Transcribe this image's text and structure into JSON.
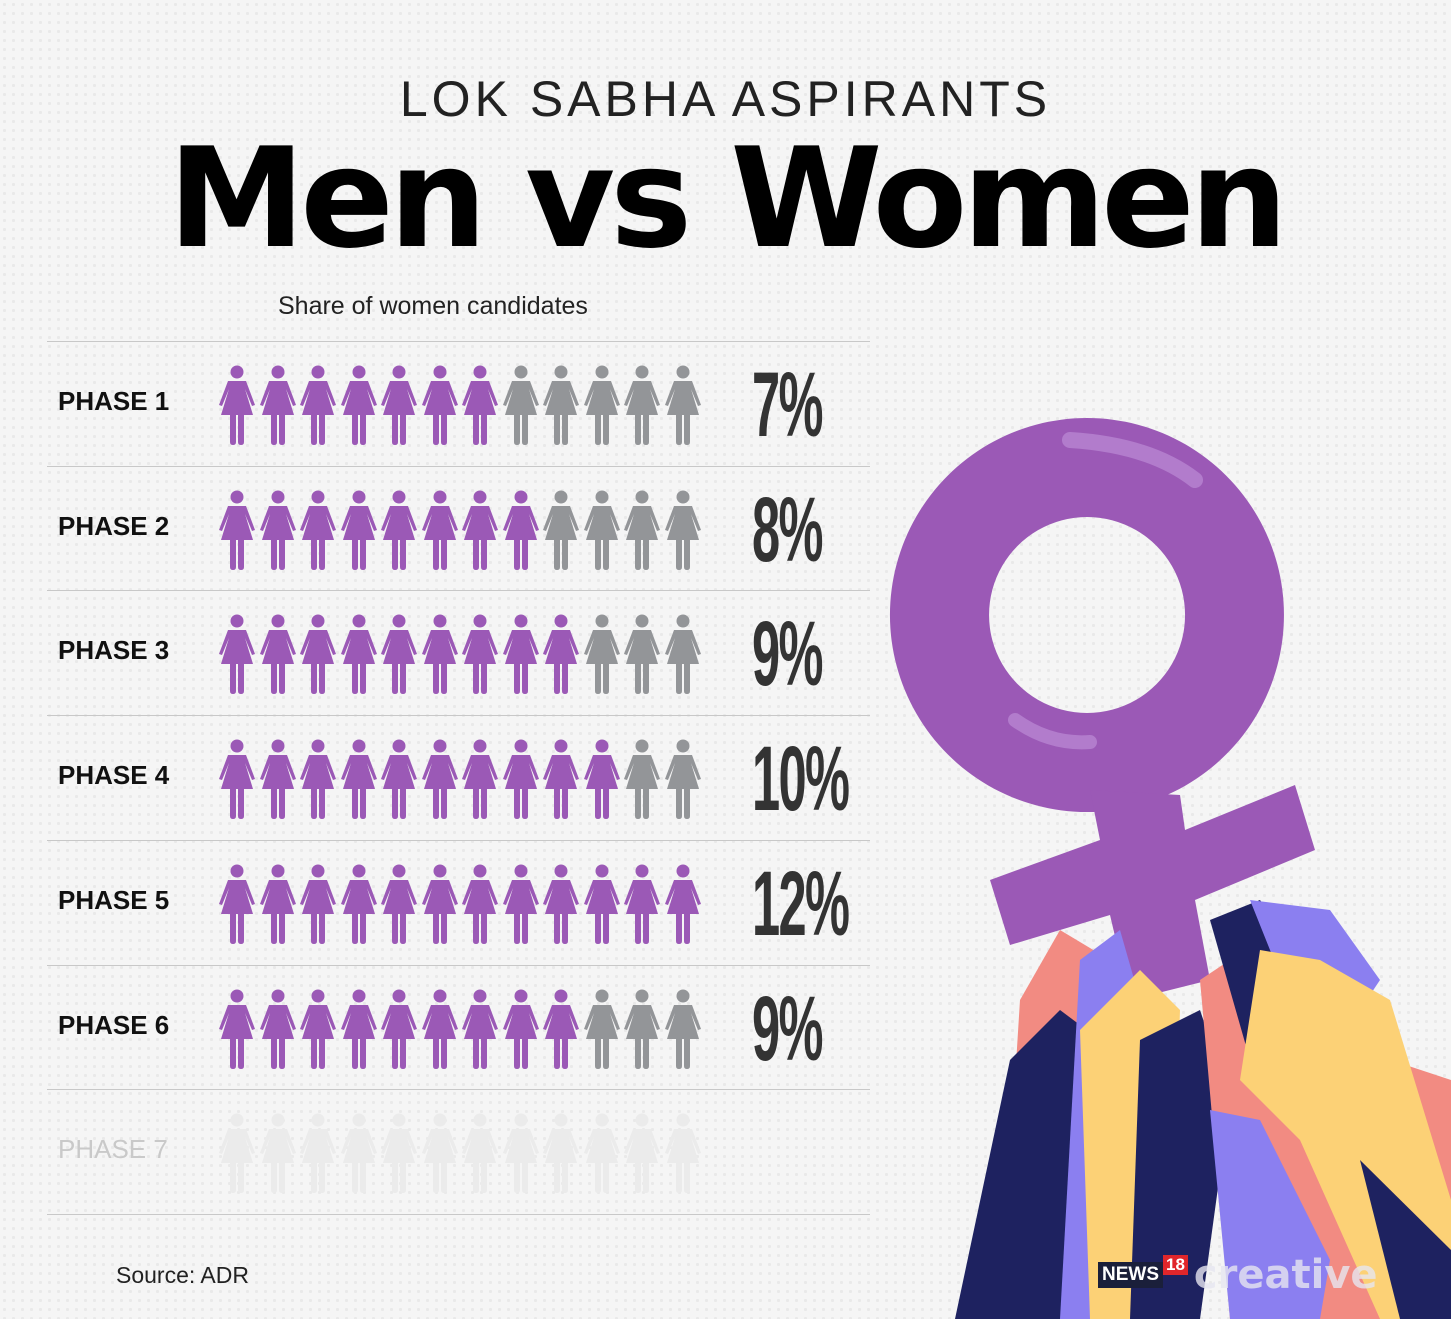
{
  "header": {
    "kicker": "LOK SABHA ASPIRANTS",
    "title": "Men vs Women",
    "subtitle": "Share of women candidates"
  },
  "colors": {
    "women": "#9b59b6",
    "men": "#939598",
    "pending": "#ebebeb"
  },
  "chart_data": {
    "type": "pictogram",
    "title": "Share of women candidates",
    "icons_per_row": 12,
    "categories": [
      "PHASE 1",
      "PHASE 2",
      "PHASE 3",
      "PHASE 4",
      "PHASE 5",
      "PHASE 6",
      "PHASE 7"
    ],
    "values_label": [
      "7%",
      "8%",
      "9%",
      "10%",
      "12%",
      "9%",
      ""
    ],
    "values": [
      7,
      8,
      9,
      10,
      12,
      9,
      null
    ],
    "filled_icons": [
      7,
      8,
      9,
      10,
      12,
      9,
      0
    ]
  },
  "footer": {
    "source": "Source: ADR",
    "logo_news": "NEWS",
    "logo_18": "18",
    "logo_creative": "creative"
  }
}
